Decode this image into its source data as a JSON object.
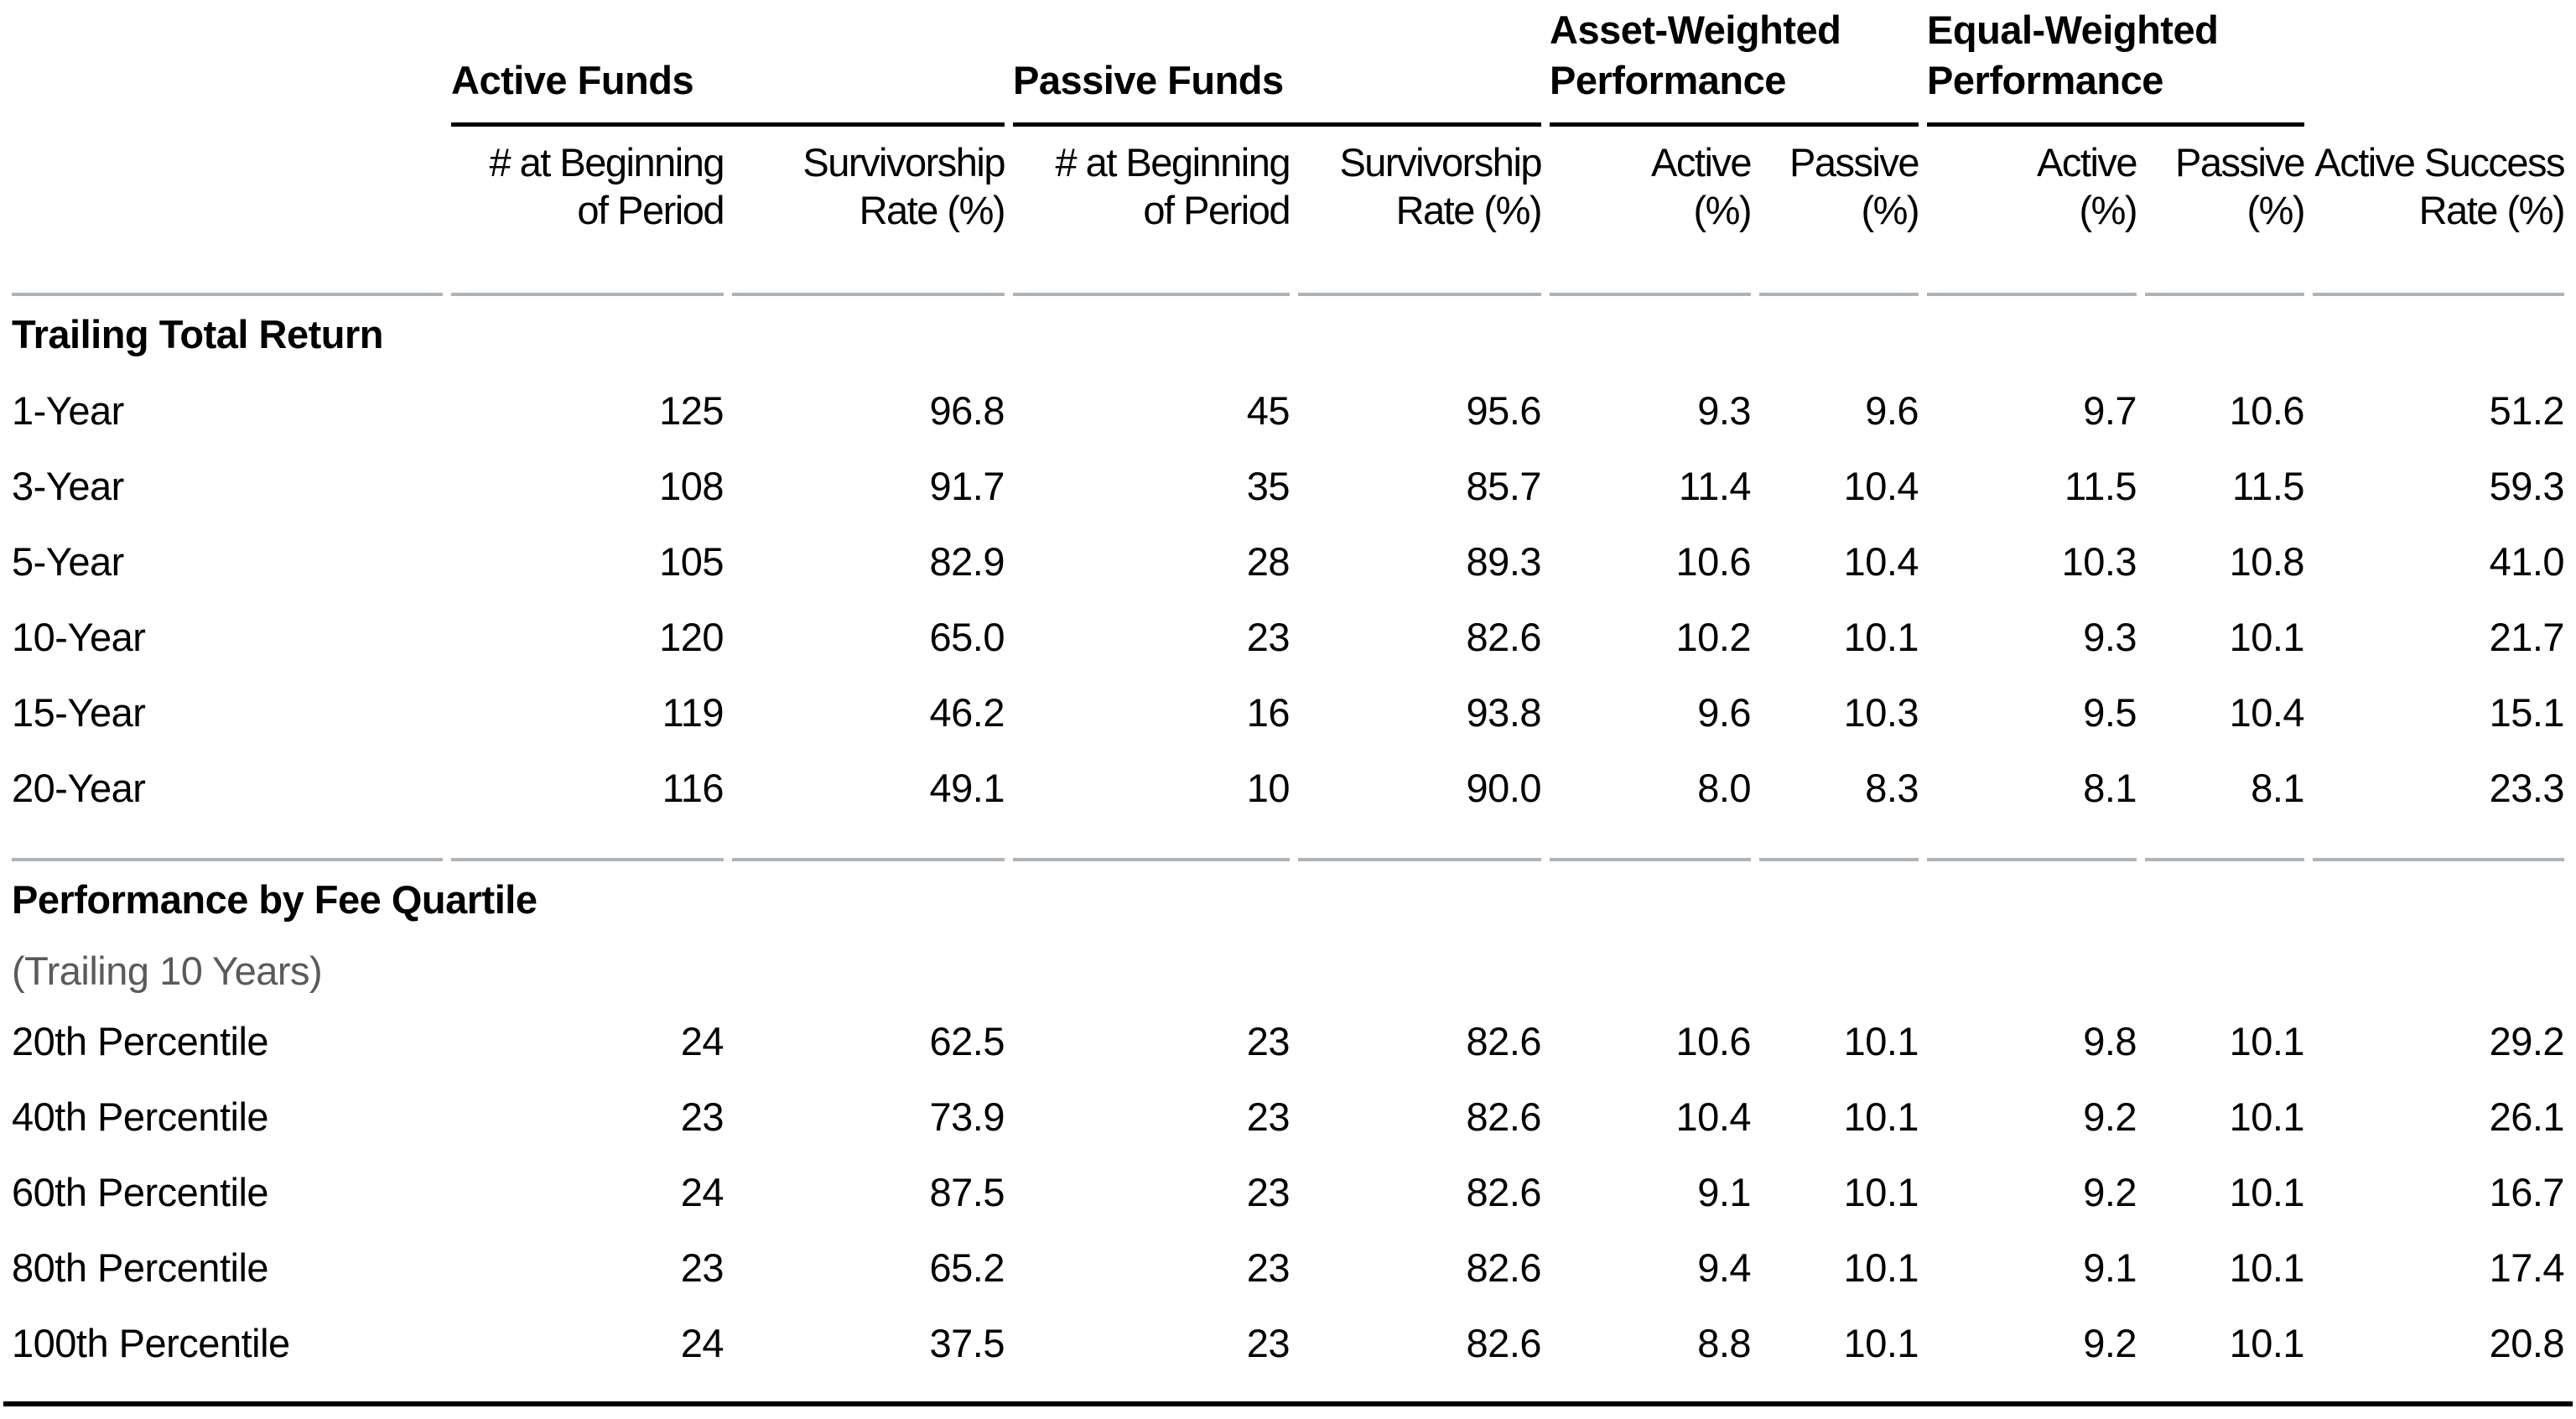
{
  "chart_data": {
    "type": "table",
    "description": "Active vs passive fund survivorship and performance comparison table",
    "column_groups": [
      {
        "label": "Active Funds",
        "span": 2
      },
      {
        "label": "Passive Funds",
        "span": 2
      },
      {
        "label": "Asset-Weighted\nPerformance",
        "span": 2
      },
      {
        "label": "Equal-Weighted\nPerformance",
        "span": 2
      }
    ],
    "columns": [
      "# at Beginning\nof Period",
      "Survivorship\nRate (%)",
      "# at Beginning\nof Period",
      "Survivorship\nRate (%)",
      "Active\n(%)",
      "Passive\n(%)",
      "Active\n(%)",
      "Passive\n(%)",
      "Active Success\nRate (%)"
    ],
    "sections": [
      {
        "title": "Trailing Total Return",
        "subtitle": "",
        "rows": [
          {
            "label": "1-Year",
            "values": [
              "125",
              "96.8",
              "45",
              "95.6",
              "9.3",
              "9.6",
              "9.7",
              "10.6",
              "51.2"
            ]
          },
          {
            "label": "3-Year",
            "values": [
              "108",
              "91.7",
              "35",
              "85.7",
              "11.4",
              "10.4",
              "11.5",
              "11.5",
              "59.3"
            ]
          },
          {
            "label": "5-Year",
            "values": [
              "105",
              "82.9",
              "28",
              "89.3",
              "10.6",
              "10.4",
              "10.3",
              "10.8",
              "41.0"
            ]
          },
          {
            "label": "10-Year",
            "values": [
              "120",
              "65.0",
              "23",
              "82.6",
              "10.2",
              "10.1",
              "9.3",
              "10.1",
              "21.7"
            ]
          },
          {
            "label": "15-Year",
            "values": [
              "119",
              "46.2",
              "16",
              "93.8",
              "9.6",
              "10.3",
              "9.5",
              "10.4",
              "15.1"
            ]
          },
          {
            "label": "20-Year",
            "values": [
              "116",
              "49.1",
              "10",
              "90.0",
              "8.0",
              "8.3",
              "8.1",
              "8.1",
              "23.3"
            ]
          }
        ]
      },
      {
        "title": "Performance by Fee Quartile",
        "subtitle": "(Trailing 10 Years)",
        "rows": [
          {
            "label": "20th Percentile",
            "values": [
              "24",
              "62.5",
              "23",
              "82.6",
              "10.6",
              "10.1",
              "9.8",
              "10.1",
              "29.2"
            ]
          },
          {
            "label": "40th Percentile",
            "values": [
              "23",
              "73.9",
              "23",
              "82.6",
              "10.4",
              "10.1",
              "9.2",
              "10.1",
              "26.1"
            ]
          },
          {
            "label": "60th Percentile",
            "values": [
              "24",
              "87.5",
              "23",
              "82.6",
              "9.1",
              "10.1",
              "9.2",
              "10.1",
              "16.7"
            ]
          },
          {
            "label": "80th Percentile",
            "values": [
              "23",
              "65.2",
              "23",
              "82.6",
              "9.4",
              "10.1",
              "9.1",
              "10.1",
              "17.4"
            ]
          },
          {
            "label": "100th Percentile",
            "values": [
              "24",
              "37.5",
              "23",
              "82.6",
              "8.8",
              "10.1",
              "9.2",
              "10.1",
              "20.8"
            ]
          }
        ]
      }
    ],
    "colors": {
      "text_black": "#000000",
      "subtitle_gray": "#595a5c",
      "rule_gray": "#b0b3b6",
      "heavy_rule_black": "#000000"
    }
  }
}
